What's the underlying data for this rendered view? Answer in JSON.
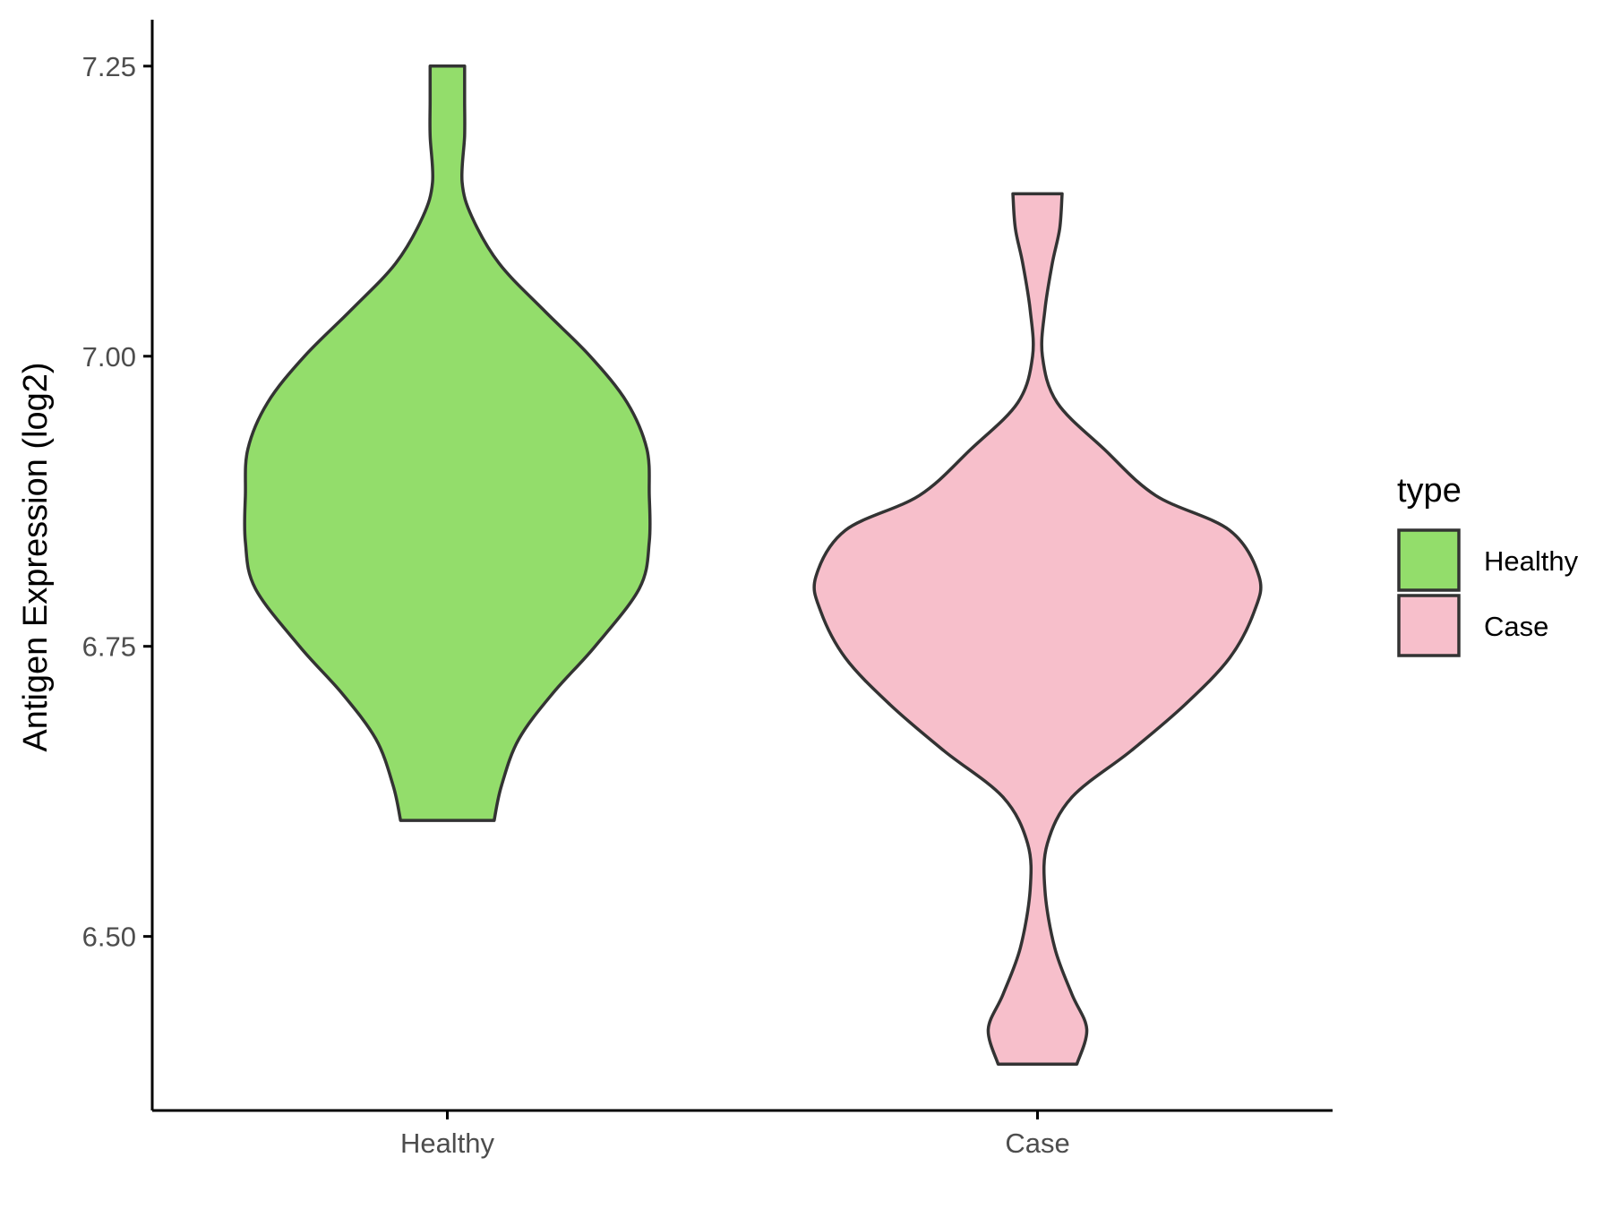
{
  "chart_data": {
    "type": "violin",
    "ylabel": "Antigen Expression (log2)",
    "xlabel": "",
    "ylim": [
      6.35,
      7.29
    ],
    "yticks": [
      6.5,
      6.75,
      7.0,
      7.25
    ],
    "ytick_labels": [
      "6.50",
      "6.75",
      "7.00",
      "7.25"
    ],
    "categories": [
      "Healthy",
      "Case"
    ],
    "legend": {
      "title": "type",
      "position": "right",
      "entries": [
        {
          "label": "Healthy",
          "color": "#93dd6b"
        },
        {
          "label": "Case",
          "color": "#f7bfcb"
        }
      ]
    },
    "series": [
      {
        "name": "Healthy",
        "color": "#93dd6b",
        "min": 6.6,
        "max": 7.25,
        "density": [
          [
            6.6,
            0.19
          ],
          [
            6.63,
            0.22
          ],
          [
            6.67,
            0.29
          ],
          [
            6.71,
            0.43
          ],
          [
            6.75,
            0.6
          ],
          [
            6.8,
            0.78
          ],
          [
            6.84,
            0.82
          ],
          [
            6.88,
            0.82
          ],
          [
            6.92,
            0.81
          ],
          [
            6.96,
            0.73
          ],
          [
            7.0,
            0.58
          ],
          [
            7.04,
            0.39
          ],
          [
            7.08,
            0.21
          ],
          [
            7.12,
            0.1
          ],
          [
            7.15,
            0.06
          ],
          [
            7.19,
            0.07
          ],
          [
            7.22,
            0.07
          ],
          [
            7.25,
            0.07
          ]
        ]
      },
      {
        "name": "Case",
        "color": "#f7bfcb",
        "min": 6.39,
        "max": 7.14,
        "density": [
          [
            6.39,
            0.16
          ],
          [
            6.42,
            0.2
          ],
          [
            6.45,
            0.14
          ],
          [
            6.49,
            0.07
          ],
          [
            6.54,
            0.03
          ],
          [
            6.58,
            0.04
          ],
          [
            6.62,
            0.14
          ],
          [
            6.66,
            0.38
          ],
          [
            6.7,
            0.6
          ],
          [
            6.74,
            0.78
          ],
          [
            6.78,
            0.88
          ],
          [
            6.81,
            0.9
          ],
          [
            6.85,
            0.78
          ],
          [
            6.88,
            0.48
          ],
          [
            6.92,
            0.27
          ],
          [
            6.96,
            0.08
          ],
          [
            7.0,
            0.02
          ],
          [
            7.04,
            0.03
          ],
          [
            7.08,
            0.06
          ],
          [
            7.11,
            0.09
          ],
          [
            7.14,
            0.1
          ]
        ]
      }
    ]
  }
}
